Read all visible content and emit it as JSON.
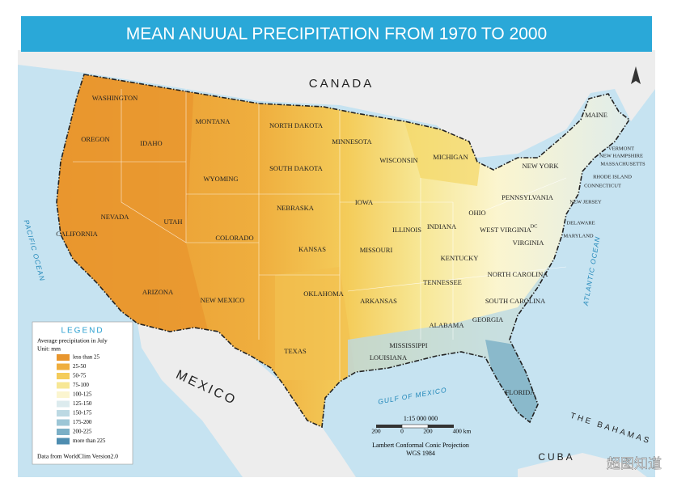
{
  "title": "MEAN ANUUAL PRECIPITATION FROM 1970 TO 2000",
  "countries": [
    "CANADA",
    "MEXICO",
    "THE BAHAMAS",
    "CUBA"
  ],
  "water": [
    "PACIFIC OCEAN",
    "ATLANTIC OCEAN",
    "GULF OF MEXICO"
  ],
  "states": [
    "WASHINGTON",
    "OREGON",
    "IDAHO",
    "MONTANA",
    "WYOMING",
    "NORTH DAKOTA",
    "SOUTH DAKOTA",
    "MINNESOTA",
    "WISCONSIN",
    "MICHIGAN",
    "NEVADA",
    "UTAH",
    "CALIFORNIA",
    "COLORADO",
    "NEBRASKA",
    "IOWA",
    "ILLINOIS",
    "INDIANA",
    "OHIO",
    "KANSAS",
    "MISSOURI",
    "KENTUCKY",
    "ARIZONA",
    "NEW MEXICO",
    "OKLAHOMA",
    "ARKANSAS",
    "TENNESSEE",
    "TEXAS",
    "LOUISIANA",
    "MISSISSIPPI",
    "ALABAMA",
    "GEORGIA",
    "FLORIDA",
    "SOUTH CAROLINA",
    "NORTH CAROLINA",
    "VIRGINIA",
    "WEST VIRGINIA",
    "PENNSYLVANIA",
    "NEW YORK",
    "MAINE",
    "VERMONT",
    "NEW HAMPSHIRE",
    "MASSACHUSETTS",
    "RHODE ISLAND",
    "CONNECTICUT",
    "NEW JERSEY",
    "DELAWARE",
    "MARYLAND",
    "DC"
  ],
  "legend": {
    "title": "LEGEND",
    "subtitle": "Average precipitation in July",
    "unit": "Unit: mm",
    "items": [
      {
        "label": "less than 25",
        "color": "#e8962e"
      },
      {
        "label": "25-50",
        "color": "#efae3e"
      },
      {
        "label": "50-75",
        "color": "#f4cc5a"
      },
      {
        "label": "75-100",
        "color": "#f7e795"
      },
      {
        "label": "100-125",
        "color": "#fbf5cf"
      },
      {
        "label": "125-150",
        "color": "#dcebee"
      },
      {
        "label": "150-175",
        "color": "#bcd9e3"
      },
      {
        "label": "175-200",
        "color": "#9cc6d6"
      },
      {
        "label": "200-225",
        "color": "#7bafc6"
      },
      {
        "label": "more than 225",
        "color": "#4e8db0"
      }
    ],
    "source": "Data from WorldClim Version2.0"
  },
  "scale": {
    "ratio": "1:15 000 000",
    "ticks": [
      "200",
      "0",
      "200",
      "400 km"
    ],
    "projection": "Lambert Conformal Conic Projection",
    "datum": "WGS 1984"
  },
  "watermark": "超图知道"
}
